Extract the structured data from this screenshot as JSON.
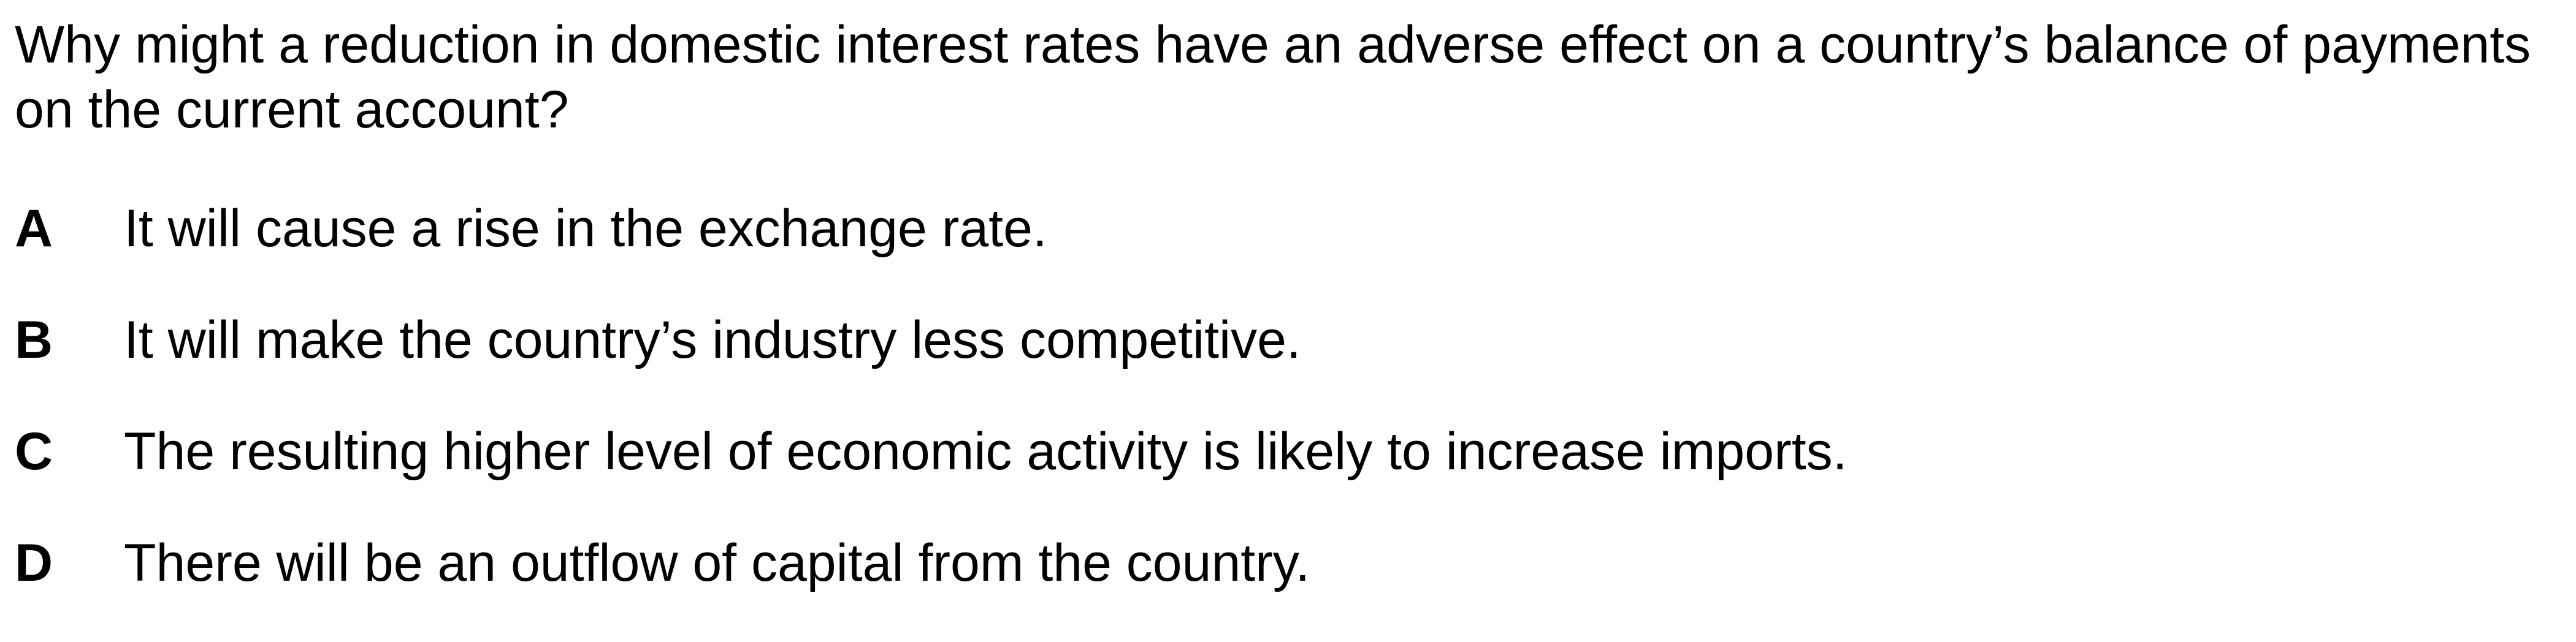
{
  "question": {
    "text": "Why might a reduction in domestic interest rates have an adverse effect on a country’s balance of payments on the current account?"
  },
  "options": [
    {
      "letter": "A",
      "text": "It will cause a rise in the exchange rate."
    },
    {
      "letter": "B",
      "text": "It will make the country’s industry less competitive."
    },
    {
      "letter": "C",
      "text": "The resulting higher level of economic activity is likely to increase imports."
    },
    {
      "letter": "D",
      "text": "There will be an outflow of capital from the country."
    }
  ]
}
